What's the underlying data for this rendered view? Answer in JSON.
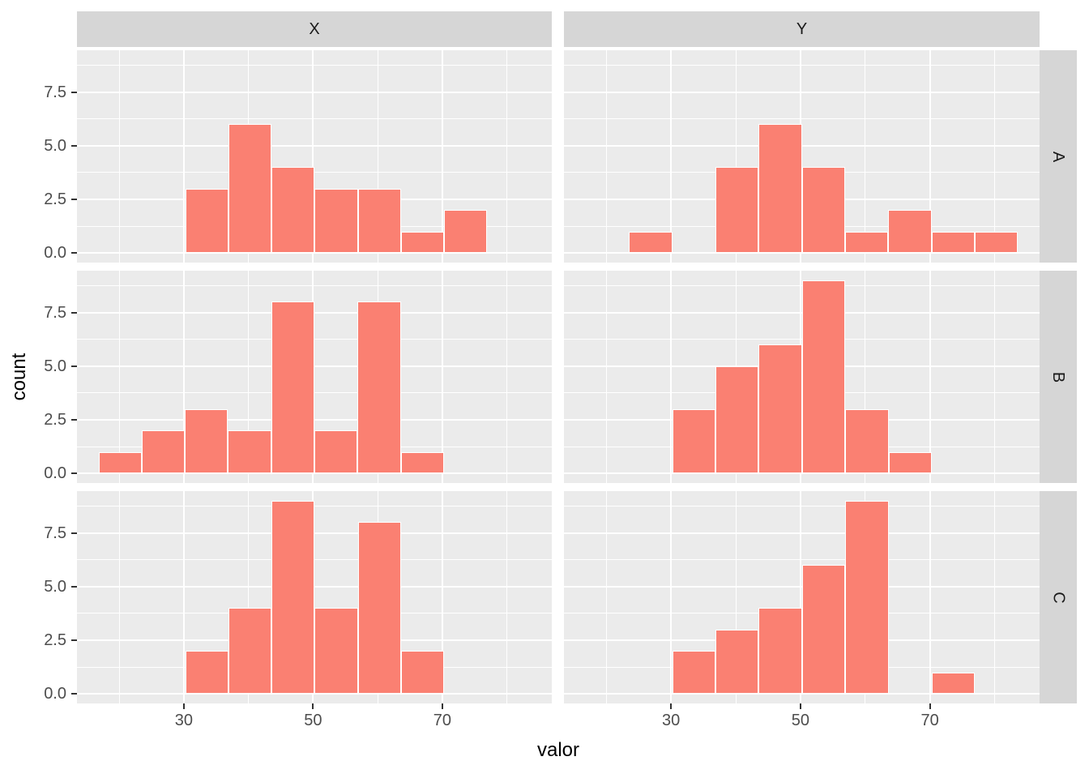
{
  "figure": {
    "background": "#FFFFFF",
    "panel_background": "#EBEBEB",
    "strip_background": "#D6D6D6",
    "gridline_color": "#FFFFFF",
    "bar_fill": "#FA8072",
    "bar_stroke": "#FFFFFF",
    "tick_mark_color": "#333333",
    "tick_label_color": "#4D4D4D",
    "title_color": "#000000"
  },
  "chart_data": {
    "type": "bar",
    "subtype": "faceted-histogram-grid",
    "title": "",
    "xlabel": "valor",
    "ylabel": "count",
    "col_facets": [
      "X",
      "Y"
    ],
    "row_facets": [
      "A",
      "B",
      "C"
    ],
    "x_ticks": [
      30,
      50,
      70
    ],
    "x_tick_labels": [
      "30",
      "50",
      "70"
    ],
    "x_minor_ticks": [
      20,
      40,
      60,
      80
    ],
    "y_ticks": [
      0.0,
      2.5,
      5.0,
      7.5
    ],
    "y_tick_labels": [
      "0.0",
      "2.5",
      "5.0",
      "7.5"
    ],
    "y_minor_ticks": [
      1.25,
      3.75,
      6.25,
      8.75
    ],
    "xlim": [
      13.46,
      86.94
    ],
    "ylim": [
      -0.45,
      9.45
    ],
    "grid": "on",
    "legend": "none",
    "binwidth": 6.68,
    "panels": [
      {
        "facet_col": "X",
        "facet_row": "A",
        "bin_start": 30.2,
        "counts": [
          3,
          6,
          4,
          3,
          3,
          1,
          2
        ]
      },
      {
        "facet_col": "Y",
        "facet_row": "A",
        "bin_start": 23.5,
        "counts": [
          1,
          0,
          4,
          6,
          4,
          1,
          2,
          1,
          1
        ]
      },
      {
        "facet_col": "X",
        "facet_row": "B",
        "bin_start": 16.8,
        "counts": [
          1,
          2,
          3,
          2,
          8,
          2,
          8,
          1
        ]
      },
      {
        "facet_col": "Y",
        "facet_row": "B",
        "bin_start": 30.2,
        "counts": [
          3,
          5,
          6,
          9,
          3,
          1
        ]
      },
      {
        "facet_col": "X",
        "facet_row": "C",
        "bin_start": 30.2,
        "counts": [
          2,
          4,
          9,
          4,
          8,
          2
        ]
      },
      {
        "facet_col": "Y",
        "facet_row": "C",
        "bin_start": 30.2,
        "counts": [
          2,
          3,
          4,
          6,
          9,
          0,
          1
        ]
      }
    ]
  }
}
